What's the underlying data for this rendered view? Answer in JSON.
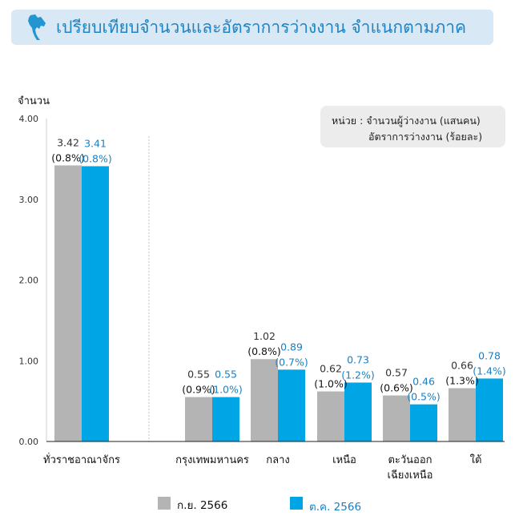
{
  "header": {
    "title": "เปรียบเทียบจำนวนและอัตราการว่างงาน จำแนกตามภาค",
    "icon": "thailand-map-icon"
  },
  "unit_box": {
    "line1": "หน่วย : จำนวนผู้ว่างงาน (แสนคน)",
    "line2": "อัตราการว่างงาน (ร้อยละ)"
  },
  "colors": {
    "sep": "#b4b4b4",
    "oct": "#00a5e6",
    "oct_text": "#1a7fc2",
    "banner": "#d8e8f4"
  },
  "chart_data": {
    "type": "bar",
    "ylabel": "จำนวน",
    "ylim": [
      0,
      4
    ],
    "yticks": [
      "0.00",
      "1.00",
      "2.00",
      "3.00",
      "4.00"
    ],
    "categories": [
      [
        "ทั่วราชอาณาจักร"
      ],
      [
        "กรุงเทพมหานคร"
      ],
      [
        "กลาง"
      ],
      [
        "เหนือ"
      ],
      [
        "ตะวันออก",
        "เฉียงเหนือ"
      ],
      [
        "ใต้"
      ]
    ],
    "series": [
      {
        "name": "ก.ย. 2566",
        "values": [
          3.42,
          0.55,
          1.02,
          0.62,
          0.57,
          0.66
        ],
        "value_labels": [
          "3.42",
          "0.55",
          "1.02",
          "0.62",
          "0.57",
          "0.66"
        ],
        "rate_labels": [
          "(0.8%)",
          "(0.9%)",
          "(0.8%)",
          "(1.0%)",
          "(0.6%)",
          "(1.3%)"
        ]
      },
      {
        "name": "ต.ค. 2566",
        "values": [
          3.41,
          0.55,
          0.89,
          0.73,
          0.46,
          0.78
        ],
        "value_labels": [
          "3.41",
          "0.55",
          "0.89",
          "0.73",
          "0.46",
          "0.78"
        ],
        "rate_labels": [
          "(0.8%)",
          "(1.0%)",
          "(0.7%)",
          "(1.2%)",
          "(0.5%)",
          "(1.4%)"
        ]
      }
    ],
    "legend_position": "bottom",
    "grid": false
  }
}
